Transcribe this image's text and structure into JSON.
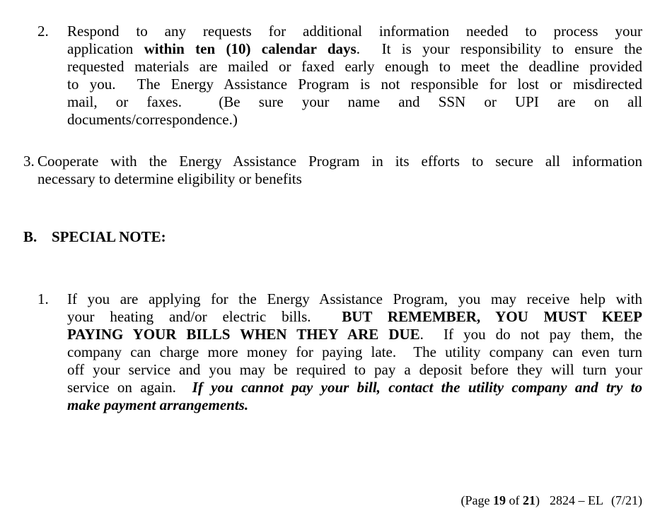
{
  "document": {
    "items_a": [
      {
        "number": "2.",
        "lines": [
          {
            "a": "j",
            "seg": [
              {
                "t": "Respond to any requests for additional information needed to process your",
                "s": "n"
              }
            ]
          },
          {
            "a": "j",
            "seg": [
              {
                "t": "application ",
                "s": "n"
              },
              {
                "t": "within ten (10) calendar days",
                "s": "b"
              },
              {
                "t": ".  It is your responsibility to ensure the",
                "s": "n"
              }
            ]
          },
          {
            "a": "j",
            "seg": [
              {
                "t": "requested materials are mailed or faxed early enough to meet the deadline provided",
                "s": "n"
              }
            ]
          },
          {
            "a": "j",
            "seg": [
              {
                "t": "to you.  The Energy Assistance Program is not responsible for lost or misdirected",
                "s": "n"
              }
            ]
          },
          {
            "a": "j",
            "seg": [
              {
                "t": "mail, or faxes.  (Be sure your name and SSN or UPI are on all",
                "s": "n"
              }
            ]
          },
          {
            "a": "l",
            "seg": [
              {
                "t": "documents/correspondence.)",
                "s": "n"
              }
            ]
          }
        ]
      },
      {
        "number": "3.",
        "lines": [
          {
            "a": "j",
            "seg": [
              {
                "t": "Cooperate with the Energy Assistance Program in its efforts to secure all information",
                "s": "n"
              }
            ]
          },
          {
            "a": "l",
            "seg": [
              {
                "t": "necessary to determine eligibility or benefits",
                "s": "n"
              }
            ]
          }
        ]
      }
    ],
    "section_b": {
      "label": "B.",
      "title": "SPECIAL NOTE:",
      "items": [
        {
          "number": "1.",
          "lines": [
            {
              "a": "j",
              "seg": [
                {
                  "t": "If you are applying for the Energy Assistance Program, you may receive help with",
                  "s": "n"
                }
              ]
            },
            {
              "a": "j",
              "seg": [
                {
                  "t": "your heating and/or electric bills.  ",
                  "s": "n"
                },
                {
                  "t": "BUT REMEMBER, YOU MUST KEEP",
                  "s": "b"
                }
              ]
            },
            {
              "a": "j",
              "seg": [
                {
                  "t": "PAYING YOUR BILLS WHEN THEY ARE DUE",
                  "s": "b"
                },
                {
                  "t": ".  If you do not pay them, the",
                  "s": "n"
                }
              ]
            },
            {
              "a": "j",
              "seg": [
                {
                  "t": "company can charge more money for paying late.  The utility company can even turn",
                  "s": "n"
                }
              ]
            },
            {
              "a": "j",
              "seg": [
                {
                  "t": "off your service and you may be required to pay a deposit before they will turn your",
                  "s": "n"
                }
              ]
            },
            {
              "a": "j",
              "seg": [
                {
                  "t": "service on again.  ",
                  "s": "n"
                },
                {
                  "t": "If you cannot pay your bill, contact the utility company and try to",
                  "s": "bi"
                }
              ]
            },
            {
              "a": "l",
              "seg": [
                {
                  "t": "make payment arrangements.",
                  "s": "bi"
                }
              ]
            }
          ]
        }
      ]
    },
    "footer": {
      "prefix": "(Page ",
      "page_number": "19",
      "of_text": " of ",
      "total_pages": "21",
      "suffix": ")",
      "form_code": "2824 – EL",
      "revision": "(7/21)"
    }
  }
}
